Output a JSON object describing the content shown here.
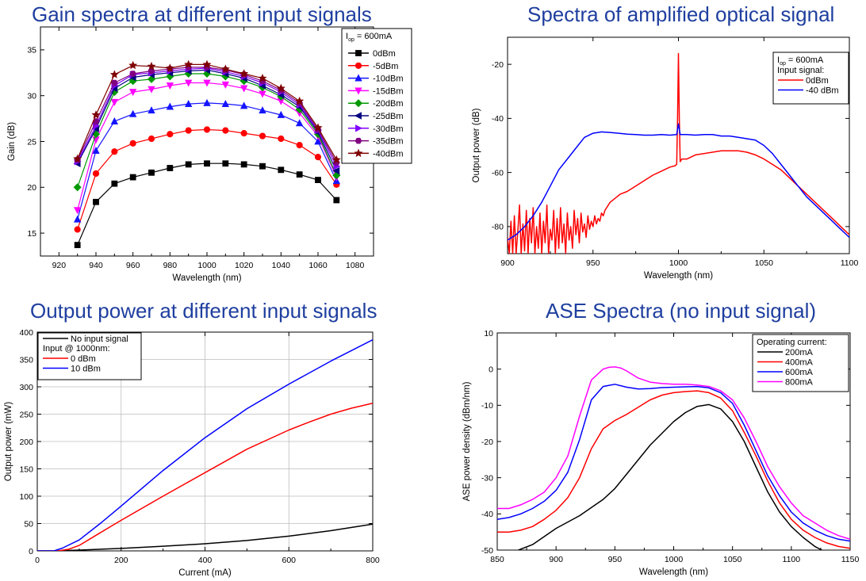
{
  "chart_data": [
    {
      "id": "gain",
      "type": "line",
      "title": "Gain spectra at different input signals",
      "xlabel": "Wavelength (nm)",
      "ylabel": "Gain (dB)",
      "xlim": [
        910,
        1090
      ],
      "ylim": [
        12.5,
        37.5
      ],
      "xticks": [
        920,
        940,
        960,
        980,
        1000,
        1020,
        1040,
        1060,
        1080
      ],
      "yticks": [
        15,
        20,
        25,
        30,
        35
      ],
      "legend": {
        "header": "I",
        "header_sub": "op",
        "header_rest": " = 600mA",
        "position": "top-right"
      },
      "x": [
        930,
        940,
        950,
        960,
        970,
        980,
        990,
        1000,
        1010,
        1020,
        1030,
        1040,
        1050,
        1060,
        1070
      ],
      "series": [
        {
          "name": "0dBm",
          "color": "#000000",
          "marker": "square",
          "values": [
            13.7,
            18.4,
            20.4,
            21.1,
            21.6,
            22.1,
            22.5,
            22.6,
            22.6,
            22.5,
            22.3,
            21.9,
            21.4,
            20.8,
            18.6
          ]
        },
        {
          "name": "-5dBm",
          "color": "#ff0000",
          "marker": "circle",
          "values": [
            15.4,
            21.5,
            23.9,
            24.8,
            25.3,
            25.8,
            26.2,
            26.3,
            26.2,
            25.9,
            25.6,
            25.3,
            24.6,
            23.3,
            20.3
          ]
        },
        {
          "name": "-10dBm",
          "color": "#1414ff",
          "marker": "triangle-up",
          "values": [
            16.5,
            24.0,
            27.2,
            28.0,
            28.4,
            28.8,
            29.1,
            29.2,
            29.1,
            28.9,
            28.4,
            27.9,
            27.0,
            25.0,
            20.7
          ]
        },
        {
          "name": "-15dBm",
          "color": "#ff00ff",
          "marker": "triangle-down",
          "values": [
            17.5,
            25.2,
            29.3,
            30.4,
            30.7,
            31.1,
            31.4,
            31.4,
            31.2,
            30.8,
            30.2,
            29.4,
            28.1,
            25.6,
            21.1
          ]
        },
        {
          "name": "-20dBm",
          "color": "#009900",
          "marker": "diamond",
          "values": [
            20.0,
            25.8,
            30.4,
            31.6,
            31.8,
            32.1,
            32.4,
            32.4,
            32.1,
            31.6,
            30.9,
            29.9,
            28.5,
            25.8,
            21.3
          ]
        },
        {
          "name": "-25dBm",
          "color": "#000080",
          "marker": "triangle-left",
          "values": [
            22.6,
            26.4,
            30.8,
            32.0,
            32.3,
            32.5,
            32.7,
            32.8,
            32.4,
            31.9,
            31.1,
            30.1,
            28.8,
            26.0,
            21.8
          ]
        },
        {
          "name": "-30dBm",
          "color": "#8000ff",
          "marker": "triangle-right",
          "values": [
            22.8,
            26.7,
            31.1,
            32.3,
            32.5,
            32.7,
            32.9,
            33.0,
            32.6,
            32.1,
            31.4,
            30.4,
            29.0,
            26.2,
            22.3
          ]
        },
        {
          "name": "-35dBm",
          "color": "#800080",
          "marker": "hexagon",
          "values": [
            23.0,
            27.2,
            31.4,
            32.4,
            32.7,
            32.9,
            33.1,
            33.1,
            32.8,
            32.3,
            31.6,
            30.6,
            29.2,
            26.3,
            22.7
          ]
        },
        {
          "name": "-40dBm",
          "color": "#7f0000",
          "marker": "star",
          "values": [
            23.1,
            27.9,
            32.3,
            33.3,
            33.2,
            33.0,
            33.4,
            33.4,
            32.9,
            32.4,
            31.9,
            30.8,
            29.4,
            26.5,
            23.0
          ]
        }
      ]
    },
    {
      "id": "osa",
      "type": "line",
      "title": "Spectra of amplified optical signal",
      "xlabel": "Wavelength (nm)",
      "ylabel": "Output power (dB)",
      "xlim": [
        900,
        1100
      ],
      "ylim": [
        -90,
        -10
      ],
      "xticks": [
        900,
        950,
        1000,
        1050,
        1100
      ],
      "yticks": [
        -80,
        -60,
        -40,
        -20
      ],
      "legend": {
        "header": "I",
        "header_sub": "op",
        "header_rest": " = 600mA",
        "subheader": "Input signal:",
        "position": "top-right"
      },
      "series": [
        {
          "name": "0dBm",
          "color": "#ff0000",
          "x": [
            900,
            901,
            902,
            903,
            904,
            905,
            906,
            907,
            908,
            909,
            910,
            911,
            912,
            913,
            914,
            915,
            916,
            917,
            918,
            919,
            920,
            921,
            922,
            923,
            924,
            925,
            926,
            927,
            928,
            929,
            930,
            931,
            932,
            933,
            934,
            935,
            936,
            937,
            938,
            939,
            940,
            941,
            942,
            943,
            944,
            945,
            946,
            947,
            948,
            949,
            950,
            951,
            952,
            953,
            954,
            955,
            956,
            957,
            958,
            959,
            960,
            962,
            964,
            966,
            970,
            975,
            980,
            985,
            990,
            995,
            998,
            999,
            999.5,
            1000,
            1000.5,
            1001,
            1002,
            1005,
            1010,
            1015,
            1020,
            1025,
            1030,
            1035,
            1040,
            1045,
            1050,
            1055,
            1060,
            1065,
            1070,
            1075,
            1080,
            1085,
            1090,
            1095,
            1100
          ],
          "values": [
            -84,
            -90,
            -78,
            -90,
            -76,
            -90,
            -82,
            -72,
            -90,
            -79,
            -89,
            -74,
            -90,
            -77,
            -86,
            -73,
            -90,
            -80,
            -88,
            -75,
            -90,
            -78,
            -86,
            -72,
            -90,
            -81,
            -85,
            -74,
            -90,
            -77,
            -88,
            -73,
            -86,
            -79,
            -90,
            -75,
            -85,
            -80,
            -88,
            -74,
            -83,
            -77,
            -86,
            -75,
            -82,
            -79,
            -84,
            -76,
            -81,
            -78,
            -80,
            -76,
            -79,
            -77,
            -78,
            -75,
            -76,
            -74,
            -73,
            -72,
            -71,
            -70,
            -69,
            -68,
            -67,
            -65,
            -63,
            -61,
            -59.5,
            -58,
            -57.5,
            -57,
            -40,
            -16,
            -40,
            -56,
            -55,
            -55,
            -53.5,
            -53,
            -52.5,
            -52,
            -52,
            -52,
            -52.5,
            -53.5,
            -55,
            -57,
            -59,
            -62,
            -65,
            -68,
            -71,
            -74,
            -77,
            -80,
            -83
          ]
        },
        {
          "name": "-40 dBm",
          "color": "#0000ff",
          "x": [
            900,
            905,
            910,
            915,
            920,
            925,
            930,
            935,
            940,
            945,
            950,
            955,
            960,
            965,
            970,
            975,
            980,
            985,
            990,
            995,
            999,
            999.5,
            1000,
            1000.5,
            1001,
            1005,
            1010,
            1015,
            1020,
            1025,
            1030,
            1035,
            1040,
            1045,
            1050,
            1055,
            1060,
            1065,
            1070,
            1075,
            1080,
            1085,
            1090,
            1095,
            1100
          ],
          "values": [
            -85,
            -83,
            -80,
            -76,
            -71,
            -65,
            -59,
            -55,
            -51,
            -47,
            -45.5,
            -45,
            -45.2,
            -45.5,
            -45.8,
            -46,
            -46.2,
            -46.2,
            -46,
            -46.2,
            -46,
            -44,
            -42,
            -44,
            -46,
            -46,
            -46.2,
            -46,
            -46,
            -46.5,
            -46.5,
            -47,
            -47.5,
            -48,
            -50,
            -53,
            -57,
            -61,
            -65,
            -69,
            -72,
            -75,
            -78,
            -81,
            -84
          ]
        }
      ]
    },
    {
      "id": "power",
      "type": "line",
      "title": "Output power at different input signals",
      "xlabel": "Current (mA)",
      "ylabel": "Output power (mW)",
      "xlim": [
        0,
        800
      ],
      "ylim": [
        0,
        400
      ],
      "xticks": [
        0,
        200,
        400,
        600,
        800
      ],
      "yticks": [
        0,
        50,
        100,
        150,
        200,
        250,
        300,
        350,
        400
      ],
      "grid": true,
      "legend": {
        "subheader": "Input @ 1000nm:",
        "position": "top-left"
      },
      "series": [
        {
          "name": "No input signal",
          "color": "#000000",
          "x": [
            0,
            50,
            100,
            200,
            300,
            400,
            500,
            600,
            700,
            800
          ],
          "values": [
            0,
            0.2,
            1.5,
            4.5,
            8.5,
            13,
            19,
            27,
            37,
            49
          ]
        },
        {
          "name": "0 dBm",
          "color": "#ff0000",
          "x": [
            0,
            50,
            75,
            100,
            150,
            200,
            300,
            400,
            500,
            600,
            650,
            700,
            750,
            800
          ],
          "values": [
            0,
            0,
            3,
            10,
            33,
            56,
            100,
            143,
            186,
            221,
            236,
            250,
            261,
            270
          ]
        },
        {
          "name": "10 dBm",
          "color": "#0000ff",
          "x": [
            0,
            40,
            60,
            100,
            150,
            200,
            300,
            400,
            500,
            600,
            700,
            800
          ],
          "values": [
            0,
            0,
            5,
            20,
            50,
            82,
            147,
            207,
            260,
            305,
            347,
            386
          ]
        }
      ]
    },
    {
      "id": "ase",
      "type": "line",
      "title": "ASE Spectra (no input signal)",
      "xlabel": "Wavelength (nm)",
      "ylabel": "ASE power density (dBm/nm)",
      "xlim": [
        850,
        1150
      ],
      "ylim": [
        -50,
        10
      ],
      "xticks": [
        850,
        900,
        950,
        1000,
        1050,
        1100,
        1150
      ],
      "yticks": [
        -50,
        -40,
        -30,
        -20,
        -10,
        0,
        10
      ],
      "legend": {
        "subheader": "Operating current:",
        "position": "top-right"
      },
      "series": [
        {
          "name": "200mA",
          "color": "#000000",
          "x": [
            868,
            880,
            900,
            920,
            940,
            950,
            960,
            980,
            1000,
            1010,
            1020,
            1030,
            1040,
            1050,
            1060,
            1070,
            1080,
            1090,
            1100,
            1110,
            1120,
            1126
          ],
          "values": [
            -50,
            -48.5,
            -44,
            -40.5,
            -36,
            -33,
            -29,
            -21,
            -14.5,
            -12,
            -10.3,
            -9.8,
            -11,
            -14.5,
            -20,
            -27,
            -34,
            -39.5,
            -43.5,
            -46.5,
            -49,
            -50
          ]
        },
        {
          "name": "400mA",
          "color": "#ff0000",
          "x": [
            850,
            860,
            870,
            880,
            890,
            900,
            910,
            920,
            930,
            940,
            950,
            960,
            970,
            980,
            990,
            1000,
            1010,
            1020,
            1030,
            1040,
            1050,
            1060,
            1070,
            1080,
            1090,
            1100,
            1110,
            1120,
            1130,
            1140,
            1150
          ],
          "values": [
            -45,
            -45,
            -44.5,
            -43.5,
            -41.5,
            -39,
            -35.5,
            -30,
            -22,
            -16.5,
            -14.2,
            -12.5,
            -10.5,
            -8.5,
            -7.2,
            -6.5,
            -6.2,
            -6.0,
            -6.5,
            -8.0,
            -11.5,
            -17.5,
            -24,
            -31,
            -37,
            -41.5,
            -44.5,
            -46.5,
            -48,
            -49,
            -49.5
          ]
        },
        {
          "name": "600mA",
          "color": "#0000ff",
          "x": [
            850,
            860,
            870,
            880,
            890,
            900,
            910,
            920,
            930,
            940,
            950,
            960,
            970,
            980,
            990,
            1000,
            1010,
            1020,
            1030,
            1040,
            1050,
            1060,
            1070,
            1080,
            1090,
            1100,
            1110,
            1120,
            1130,
            1140,
            1150
          ],
          "values": [
            -41.5,
            -41,
            -40,
            -38.5,
            -36.5,
            -33.5,
            -28.5,
            -19.5,
            -8.5,
            -4.8,
            -4.2,
            -5.0,
            -5.5,
            -5.4,
            -5.1,
            -5.0,
            -4.9,
            -4.8,
            -5.2,
            -6.5,
            -9.5,
            -15.5,
            -22.5,
            -29.5,
            -35,
            -39.5,
            -42.5,
            -44.5,
            -46,
            -47,
            -47.5
          ]
        },
        {
          "name": "800mA",
          "color": "#ff00ff",
          "x": [
            850,
            860,
            870,
            880,
            890,
            900,
            910,
            920,
            930,
            940,
            945,
            950,
            955,
            960,
            970,
            980,
            990,
            1000,
            1010,
            1020,
            1030,
            1040,
            1050,
            1060,
            1070,
            1080,
            1090,
            1100,
            1110,
            1120,
            1130,
            1140,
            1150
          ],
          "values": [
            -38.5,
            -38.5,
            -37.5,
            -36,
            -34,
            -30,
            -24,
            -13,
            -3,
            0,
            0.5,
            0.6,
            0.3,
            -0.5,
            -2.5,
            -3.6,
            -4.0,
            -4.2,
            -4.2,
            -4.4,
            -4.8,
            -6.0,
            -8.5,
            -13.5,
            -20,
            -27,
            -32.5,
            -37,
            -40.5,
            -42.5,
            -44.5,
            -46,
            -47
          ]
        }
      ]
    }
  ]
}
